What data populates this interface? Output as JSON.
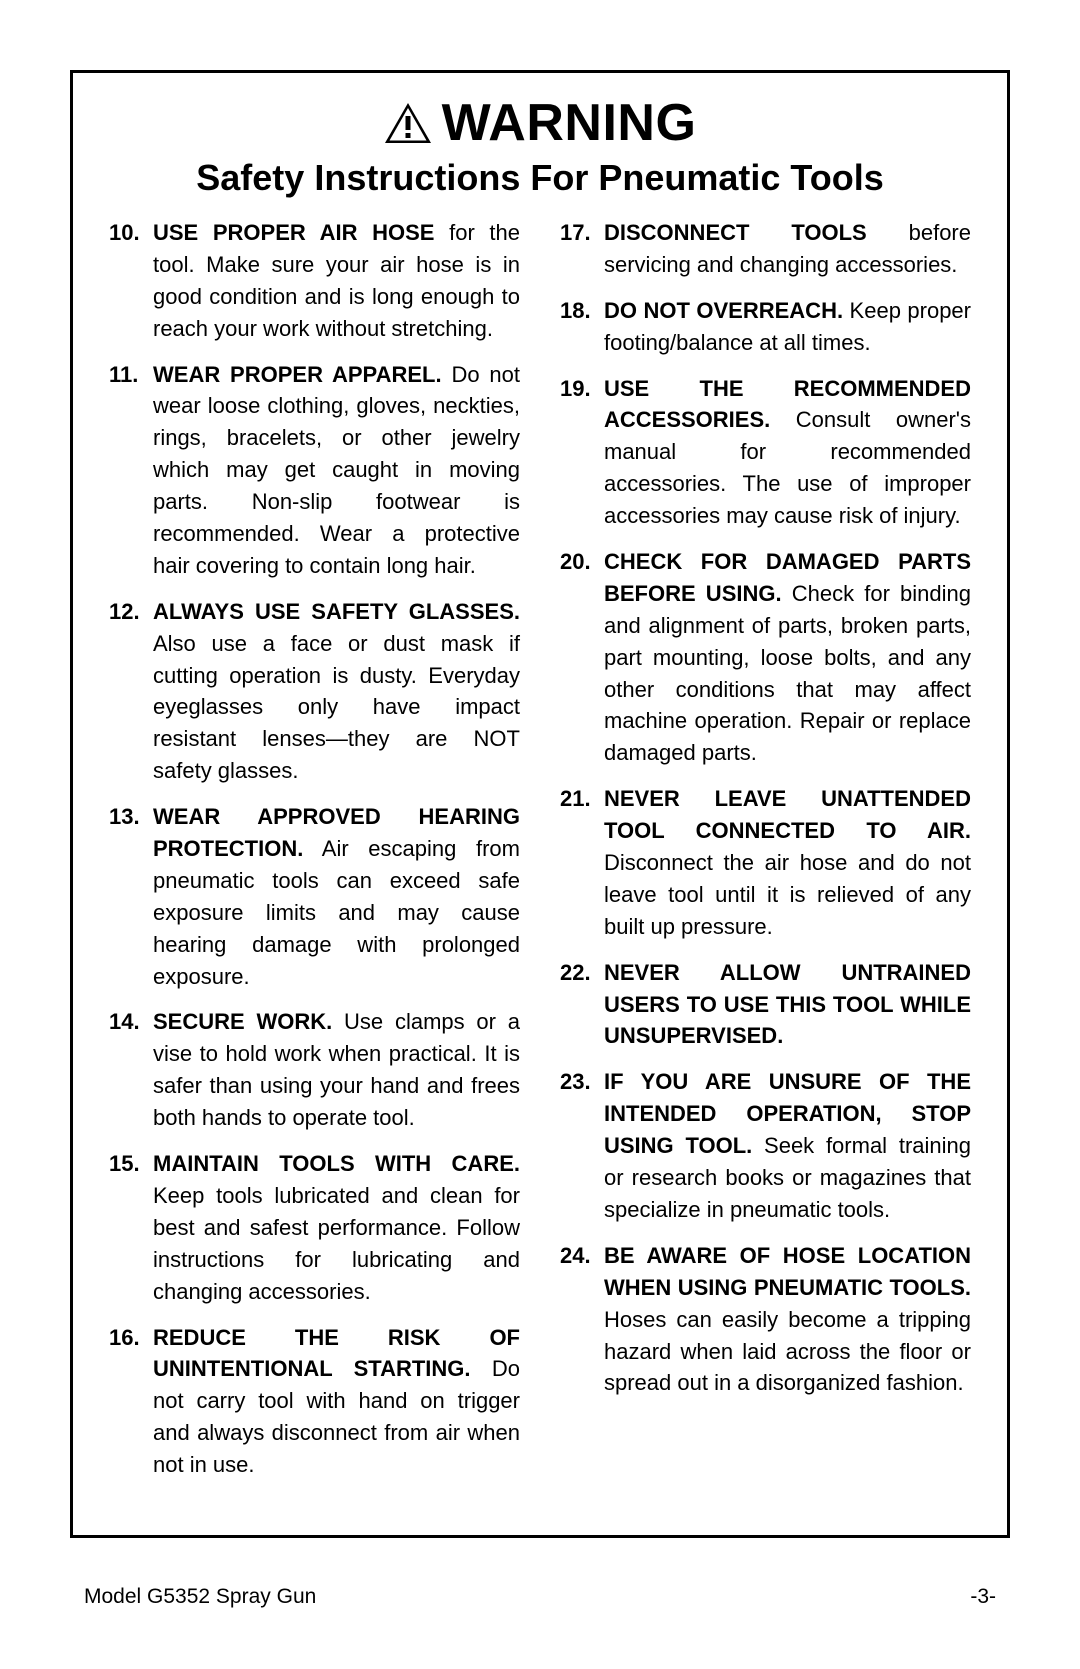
{
  "heading": {
    "warning": "WARNING",
    "subtitle": "Safety Instructions For Pneumatic Tools"
  },
  "left_items": [
    {
      "num": "10.",
      "bold": "USE PROPER AIR HOSE",
      "text": " for the tool. Make sure your air hose is in good condition and is long enough to reach your work without stretching."
    },
    {
      "num": "11.",
      "bold": "WEAR PROPER APPAREL.",
      "text": " Do not wear loose clothing, gloves, neckties, rings, bracelets, or other jewelry which may get caught in moving parts. Non-slip footwear is recommended. Wear a protective hair covering to contain long hair."
    },
    {
      "num": "12.",
      "bold": "ALWAYS USE SAFETY GLASSES.",
      "text": " Also use a face or dust mask if cutting operation is dusty. Everyday eyeglasses only have impact resistant lenses—they are NOT safety glasses."
    },
    {
      "num": "13.",
      "bold": "WEAR APPROVED HEARING PROTECTION.",
      "text": " Air escaping from pneumatic tools can exceed safe exposure limits and may cause hearing damage with prolonged exposure."
    },
    {
      "num": "14.",
      "bold": "SECURE WORK.",
      "text": " Use clamps or a vise to hold work when practical. It is safer than using your hand and frees both hands to operate tool."
    },
    {
      "num": "15.",
      "bold": "MAINTAIN TOOLS WITH CARE.",
      "text": " Keep tools lubricated and clean for best and safest performance. Follow instructions for lubricating and changing accessories."
    },
    {
      "num": "16.",
      "bold": "REDUCE THE RISK OF UNINTENTIONAL STARTING.",
      "text": " Do not carry tool with hand on trigger and always disconnect from air when not in use."
    }
  ],
  "right_items": [
    {
      "num": "17.",
      "bold": "DISCONNECT TOOLS",
      "text": " before servicing and changing accessories."
    },
    {
      "num": "18.",
      "bold": "DO NOT OVERREACH.",
      "text": " Keep proper footing/balance at all times."
    },
    {
      "num": "19.",
      "bold": "USE THE RECOMMENDED ACCESSORIES.",
      "text": " Consult owner's manual for recommended accessories. The use of improper accessories may cause risk of injury."
    },
    {
      "num": "20.",
      "bold": "CHECK FOR DAMAGED PARTS BEFORE USING.",
      "text": " Check for binding and alignment of parts, broken parts, part mounting, loose bolts, and any other conditions that may affect machine operation. Repair or replace damaged parts."
    },
    {
      "num": "21.",
      "bold": "NEVER LEAVE UNATTENDED TOOL CONNECTED TO AIR.",
      "text": " Disconnect the air hose and do not leave tool until it is relieved of any built up pressure."
    },
    {
      "num": "22.",
      "bold": "NEVER ALLOW UNTRAINED USERS TO USE THIS TOOL WHILE UNSUPERVISED.",
      "text": ""
    },
    {
      "num": "23.",
      "bold": "IF YOU ARE UNSURE OF THE INTENDED OPERATION, STOP USING TOOL.",
      "text": " Seek formal training or research books or magazines that specialize in pneumatic tools."
    },
    {
      "num": "24.",
      "bold": "BE AWARE OF HOSE LOCATION WHEN USING PNEUMATIC TOOLS.",
      "text": " Hoses can easily become a tripping hazard when laid across the floor or spread out in a disorganized fashion."
    }
  ],
  "footer": {
    "left": "Model G5352 Spray Gun",
    "right": "-3-"
  }
}
